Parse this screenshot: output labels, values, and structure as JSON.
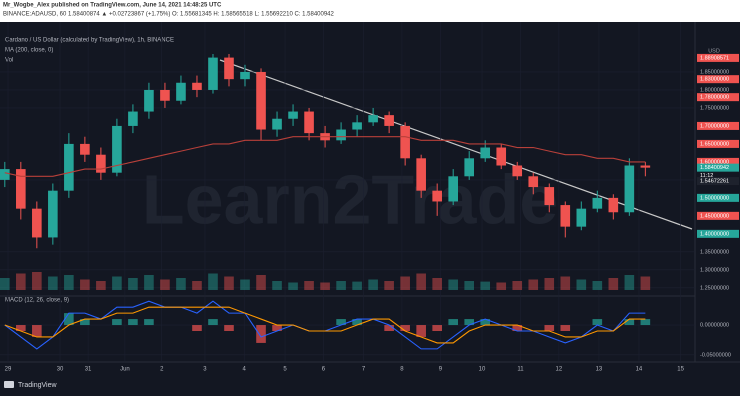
{
  "header": {
    "author": "Mr_Wogbe_Alex published on TradingView.com, June 14, 2021 14:48:25 UTC",
    "symbol_line": "BINANCE:ADAUSD, 60  1.58400874 ▲ +0.02723867 (+1.75%)  O: 1.55681345  H: 1.58565518  L: 1.55692210  C: 1.58400942"
  },
  "chart_data": {
    "type": "candlestick",
    "title": "Cardano / US Dollar (calculated by TradingView), 1h, BINANCE",
    "y_unit": "USD",
    "watermark": "Learn2Trade",
    "up_color": "#26a69a",
    "down_color": "#ef5350",
    "open": [
      1.55,
      1.58,
      1.47,
      1.39,
      1.52,
      1.65,
      1.62,
      1.57,
      1.7,
      1.74,
      1.8,
      1.77,
      1.82,
      1.8,
      1.89,
      1.83,
      1.85,
      1.69,
      1.72,
      1.74,
      1.68,
      1.66,
      1.69,
      1.71,
      1.73,
      1.7,
      1.61,
      1.52,
      1.49,
      1.56,
      1.61,
      1.64,
      1.59,
      1.56,
      1.53,
      1.48,
      1.42,
      1.47,
      1.5,
      1.46,
      1.59
    ],
    "high": [
      1.6,
      1.6,
      1.49,
      1.54,
      1.68,
      1.67,
      1.64,
      1.72,
      1.76,
      1.82,
      1.82,
      1.84,
      1.84,
      1.9,
      1.9,
      1.87,
      1.86,
      1.74,
      1.76,
      1.75,
      1.7,
      1.71,
      1.73,
      1.75,
      1.74,
      1.71,
      1.62,
      1.54,
      1.58,
      1.63,
      1.66,
      1.65,
      1.6,
      1.57,
      1.54,
      1.49,
      1.49,
      1.52,
      1.51,
      1.61,
      1.6
    ],
    "low": [
      1.53,
      1.44,
      1.36,
      1.37,
      1.5,
      1.6,
      1.55,
      1.56,
      1.68,
      1.72,
      1.75,
      1.76,
      1.78,
      1.79,
      1.81,
      1.81,
      1.66,
      1.67,
      1.7,
      1.66,
      1.64,
      1.65,
      1.67,
      1.7,
      1.68,
      1.59,
      1.5,
      1.45,
      1.48,
      1.55,
      1.6,
      1.58,
      1.55,
      1.51,
      1.46,
      1.39,
      1.41,
      1.46,
      1.44,
      1.45,
      1.56
    ],
    "close": [
      1.58,
      1.47,
      1.39,
      1.52,
      1.65,
      1.62,
      1.57,
      1.7,
      1.74,
      1.8,
      1.77,
      1.82,
      1.8,
      1.89,
      1.83,
      1.85,
      1.69,
      1.72,
      1.74,
      1.68,
      1.66,
      1.69,
      1.71,
      1.73,
      1.7,
      1.61,
      1.52,
      1.49,
      1.56,
      1.61,
      1.64,
      1.59,
      1.56,
      1.53,
      1.48,
      1.42,
      1.47,
      1.5,
      1.46,
      1.59,
      1.584
    ],
    "ma": {
      "name": "MA (200, close, 0)",
      "color": "#b8403a",
      "values": [
        1.57,
        1.56,
        1.56,
        1.56,
        1.57,
        1.58,
        1.58,
        1.59,
        1.6,
        1.61,
        1.62,
        1.63,
        1.64,
        1.65,
        1.65,
        1.66,
        1.66,
        1.66,
        1.67,
        1.67,
        1.67,
        1.67,
        1.67,
        1.67,
        1.67,
        1.67,
        1.66,
        1.66,
        1.66,
        1.65,
        1.65,
        1.65,
        1.64,
        1.64,
        1.63,
        1.62,
        1.62,
        1.61,
        1.61,
        1.6,
        1.6
      ]
    },
    "volume": {
      "name": "Vol",
      "lim": [
        0,
        100
      ],
      "values": [
        40,
        55,
        60,
        45,
        50,
        35,
        30,
        45,
        40,
        50,
        35,
        40,
        30,
        55,
        45,
        35,
        50,
        30,
        25,
        30,
        25,
        30,
        28,
        35,
        30,
        45,
        55,
        40,
        35,
        30,
        28,
        25,
        30,
        35,
        40,
        45,
        35,
        30,
        40,
        50,
        45
      ]
    },
    "macd": {
      "name": "MACD (12, 26, close, 9)",
      "macd": {
        "color": "#2962ff",
        "values": [
          0.0,
          -0.02,
          -0.04,
          -0.02,
          0.02,
          0.02,
          0.01,
          0.03,
          0.03,
          0.04,
          0.03,
          0.03,
          0.02,
          0.04,
          0.02,
          0.02,
          -0.02,
          -0.01,
          0.0,
          -0.01,
          -0.01,
          0.0,
          0.01,
          0.01,
          0.0,
          -0.02,
          -0.04,
          -0.04,
          -0.02,
          0.0,
          0.01,
          0.0,
          -0.01,
          -0.01,
          -0.02,
          -0.03,
          -0.02,
          0.0,
          -0.01,
          0.02,
          0.02
        ]
      },
      "signal": {
        "color": "#ff9800",
        "values": [
          0.0,
          -0.01,
          -0.02,
          -0.02,
          0.0,
          0.01,
          0.01,
          0.02,
          0.02,
          0.03,
          0.03,
          0.03,
          0.03,
          0.03,
          0.03,
          0.02,
          0.01,
          0.0,
          0.0,
          -0.01,
          -0.01,
          -0.01,
          0.0,
          0.01,
          0.01,
          -0.01,
          -0.02,
          -0.03,
          -0.03,
          -0.01,
          0.0,
          0.0,
          0.0,
          -0.01,
          -0.01,
          -0.02,
          -0.02,
          -0.01,
          -0.01,
          0.01,
          0.01
        ]
      },
      "histogram": [
        0,
        -0.01,
        -0.02,
        0,
        0.02,
        0.01,
        0,
        0.01,
        0.01,
        0.01,
        0,
        0,
        -0.01,
        0.01,
        -0.01,
        0,
        -0.03,
        -0.01,
        0,
        0,
        0,
        0.01,
        0.01,
        0,
        -0.01,
        -0.01,
        -0.02,
        -0.01,
        0.01,
        0.01,
        0.01,
        0,
        -0.01,
        0,
        -0.01,
        -0.01,
        0,
        0.01,
        0,
        0.01,
        0.01
      ],
      "y2lim": [
        -0.062,
        0.042
      ],
      "y2ticks": [
        {
          "value": 0,
          "label": "0.00000000"
        },
        {
          "value": -0.05,
          "label": "-0.05000000"
        }
      ]
    },
    "ylim": [
      1.23,
      1.95
    ],
    "yticks": [
      {
        "value": 1.25,
        "label": "1.25000000"
      },
      {
        "value": 1.3,
        "label": "1.30000000"
      },
      {
        "value": 1.35,
        "label": "1.35000000"
      },
      {
        "value": 1.55,
        "label": "1.55000000"
      },
      {
        "value": 1.75,
        "label": "1.75000000"
      },
      {
        "value": 1.8,
        "label": "1.80000000"
      },
      {
        "value": 1.85,
        "label": "1.85000000"
      }
    ],
    "levels": [
      {
        "value": 1.88908571,
        "label": "1.88908571",
        "color": "#ef5350"
      },
      {
        "value": 1.83,
        "label": "1.83000000",
        "color": "#ef5350"
      },
      {
        "value": 1.78,
        "label": "1.78000000",
        "color": "#ef5350"
      },
      {
        "value": 1.7,
        "label": "1.70000000",
        "color": "#ef5350"
      },
      {
        "value": 1.65,
        "label": "1.65000000",
        "color": "#ef5350"
      },
      {
        "value": 1.6,
        "label": "1.60000000",
        "color": "#ef5350"
      },
      {
        "value": 1.58400942,
        "label": "1.58400942",
        "color": "#26a69a"
      },
      {
        "value": 1.54672261,
        "label": "1.54672261",
        "color": "#1e222d"
      },
      {
        "value": 1.5,
        "label": "1.50000000",
        "color": "#26a69a"
      },
      {
        "value": 1.45,
        "label": "1.45000000",
        "color": "#ef5350"
      },
      {
        "value": 1.4,
        "label": "1.40000000",
        "color": "#26a69a"
      }
    ],
    "countdown": "11:12",
    "xlim": [
      -0.3,
      43.1
    ],
    "xticks": [
      {
        "value": 0.2,
        "label": "29"
      },
      {
        "value": 3.45,
        "label": "30"
      },
      {
        "value": 5.2,
        "label": "31"
      },
      {
        "value": 7.5,
        "label": "Jun"
      },
      {
        "value": 9.8,
        "label": "2"
      },
      {
        "value": 12.5,
        "label": "3"
      },
      {
        "value": 14.95,
        "label": "4"
      },
      {
        "value": 17.5,
        "label": "5"
      },
      {
        "value": 19.9,
        "label": "6"
      },
      {
        "value": 22.4,
        "label": "7"
      },
      {
        "value": 24.8,
        "label": "8"
      },
      {
        "value": 27.2,
        "label": "9"
      },
      {
        "value": 29.8,
        "label": "10"
      },
      {
        "value": 32.2,
        "label": "11"
      },
      {
        "value": 34.6,
        "label": "12"
      },
      {
        "value": 37.1,
        "label": "13"
      },
      {
        "value": 39.6,
        "label": "14"
      },
      {
        "value": 42.2,
        "label": "15"
      }
    ]
  },
  "footer": {
    "logo": "TradingView"
  }
}
